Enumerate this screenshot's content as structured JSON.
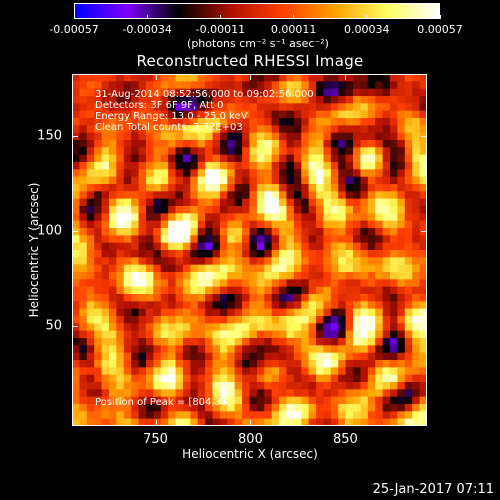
{
  "colorbar": {
    "tick_labels": [
      "-0.00057",
      "-0.00034",
      "-0.00011",
      "0.00011",
      "0.00034",
      "0.00057"
    ],
    "units": "(photons cm⁻² s⁻¹ asec⁻²)",
    "colormap_stops": [
      "#0000ff",
      "#7f00ff",
      "#000000",
      "#b01000",
      "#ff4000",
      "#ffa000",
      "#ffff60",
      "#ffffff"
    ],
    "range": [
      -0.00057,
      0.00057
    ]
  },
  "chart_data": {
    "type": "heatmap",
    "title": "Reconstructed RHESSI Image",
    "xlabel": "Heliocentric X (arcsec)",
    "ylabel": "Heliocentric Y (arcsec)",
    "xlim": [
      706,
      893
    ],
    "ylim": [
      -3,
      183
    ],
    "x_ticks": [
      750,
      800,
      850
    ],
    "y_ticks": [
      50,
      100,
      150
    ],
    "peak_position": [
      804,
      31
    ],
    "annotations": {
      "time_range": "31-Aug-2014 08:52:56.000 to 09:02:56.000",
      "detectors": "Detectors: 3F 6F 9F, Att 0",
      "energy_range": "Energy Range: 13.0 - 25.0 keV",
      "method": "Clean    Total counts: 3.72E+03",
      "peak": "Position of Peak = [804,31]"
    }
  },
  "footer": {
    "date": "25-Jan-2017 07:11"
  }
}
